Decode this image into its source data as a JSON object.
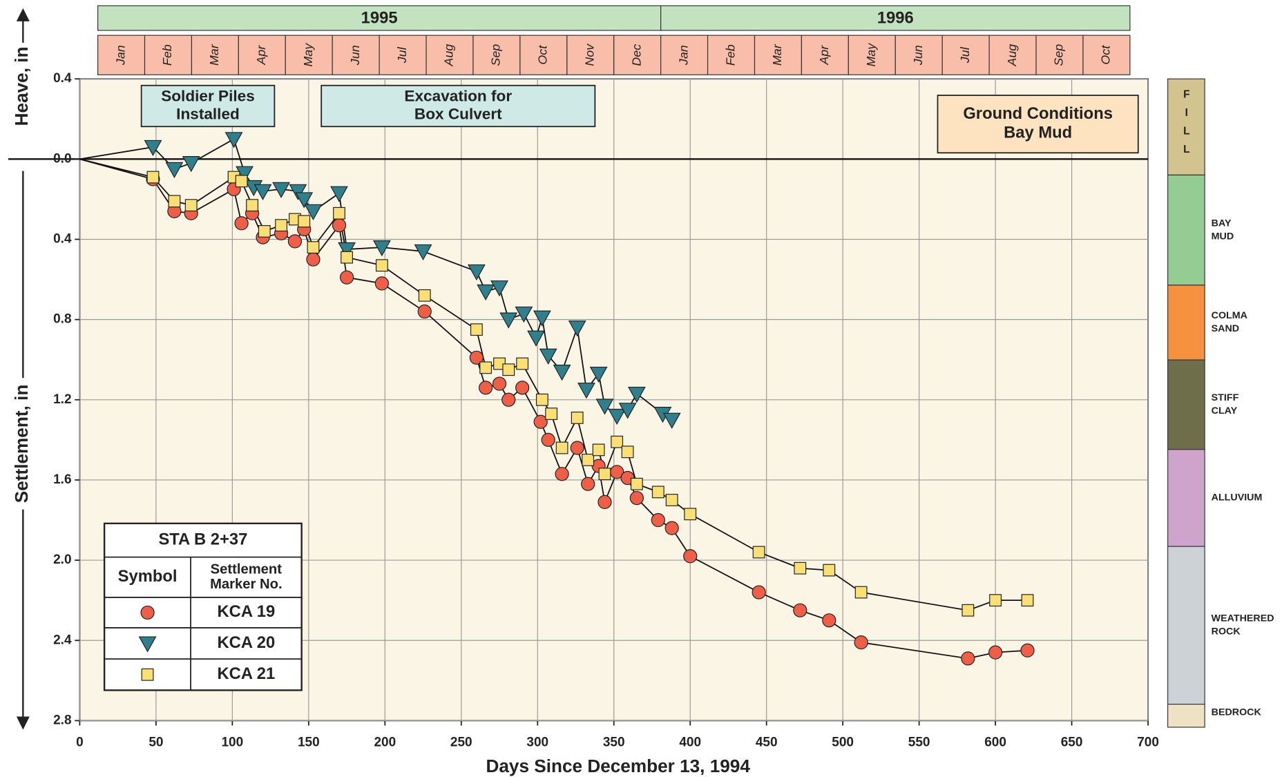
{
  "chart_data": {
    "type": "line",
    "timeline": [
      {
        "year": "1995",
        "months": [
          "Jan",
          "Feb",
          "Mar",
          "Apr",
          "May",
          "Jun",
          "Jul",
          "Aug",
          "Sep",
          "Oct",
          "Nov",
          "Dec"
        ]
      },
      {
        "year": "1996",
        "months": [
          "Jan",
          "Feb",
          "Mar",
          "Apr",
          "May",
          "Jun",
          "Jul",
          "Aug",
          "Sep",
          "Oct"
        ]
      }
    ],
    "annotations": [
      {
        "lines": [
          "Soldier Piles",
          "Installed"
        ]
      },
      {
        "lines": [
          "Excavation for",
          "Box Culvert"
        ]
      },
      {
        "lines": [
          "Ground Conditions",
          "Bay Mud"
        ]
      }
    ],
    "x_label": "Days Since December 13, 1994",
    "y_label_up": "Heave, in",
    "y_label_down": "Settlement, in",
    "xlim": [
      0,
      700
    ],
    "xticks": [
      0,
      50,
      100,
      150,
      200,
      250,
      300,
      350,
      400,
      450,
      500,
      550,
      600,
      650,
      700
    ],
    "ylim": [
      -0.4,
      2.8
    ],
    "yticks": [
      {
        "value": -0.4,
        "label": "0.4"
      },
      {
        "value": 0,
        "label": "0.0"
      },
      0.4,
      0.8,
      1.2,
      1.6,
      {
        "value": 2,
        "label": "2.0"
      },
      2.4,
      2.8
    ],
    "y_inverted": true,
    "grid": true,
    "legend": {
      "title": "STA B 2+37",
      "col1": "Symbol",
      "col2": [
        "Settlement",
        "Marker No."
      ],
      "position": "lower left"
    },
    "series": [
      {
        "name": "KCA 19",
        "marker": "circle",
        "color": "#ef5f48",
        "x": [
          0,
          48,
          62,
          73,
          101,
          106,
          113,
          120,
          132,
          141,
          147,
          153,
          170,
          175,
          198,
          226,
          260,
          266,
          275,
          281,
          290,
          302,
          307,
          316,
          326,
          333,
          340,
          344,
          352,
          359,
          365,
          379,
          388,
          400,
          445,
          472,
          491,
          512,
          582,
          600,
          621
        ],
        "values": [
          0,
          0.1,
          0.26,
          0.27,
          0.15,
          0.32,
          0.27,
          0.39,
          0.37,
          0.41,
          0.35,
          0.5,
          0.33,
          0.59,
          0.62,
          0.76,
          0.99,
          1.14,
          1.12,
          1.2,
          1.14,
          1.31,
          1.4,
          1.57,
          1.44,
          1.62,
          1.53,
          1.71,
          1.56,
          1.59,
          1.69,
          1.8,
          1.84,
          1.98,
          2.16,
          2.25,
          2.3,
          2.41,
          2.49,
          2.46,
          2.45
        ]
      },
      {
        "name": "KCA 20",
        "marker": "triangle",
        "color": "#2f7f8c",
        "x": [
          0,
          48,
          62,
          73,
          101,
          108,
          114,
          120,
          132,
          143,
          147,
          153,
          170,
          175,
          198,
          225,
          260,
          266,
          275,
          281,
          291,
          299,
          303,
          307,
          316,
          326,
          332,
          340,
          344,
          352,
          359,
          365,
          382,
          388
        ],
        "values": [
          0,
          -0.06,
          0.05,
          0.02,
          -0.1,
          0.07,
          0.14,
          0.16,
          0.15,
          0.16,
          0.2,
          0.26,
          0.17,
          0.45,
          0.44,
          0.46,
          0.56,
          0.66,
          0.64,
          0.8,
          0.77,
          0.89,
          0.79,
          0.98,
          1.06,
          0.84,
          1.15,
          1.07,
          1.23,
          1.28,
          1.25,
          1.17,
          1.27,
          1.3
        ]
      },
      {
        "name": "KCA 21",
        "marker": "square",
        "color": "#f9df74",
        "x": [
          0,
          48,
          62,
          73,
          101,
          106,
          113,
          121,
          132,
          141,
          147,
          153,
          170,
          175,
          198,
          226,
          260,
          266,
          275,
          281,
          290,
          303,
          309,
          316,
          326,
          333,
          340,
          344,
          352,
          359,
          365,
          379,
          388,
          400,
          445,
          472,
          491,
          512,
          582,
          600,
          621
        ],
        "values": [
          0,
          0.09,
          0.21,
          0.23,
          0.09,
          0.11,
          0.23,
          0.36,
          0.33,
          0.3,
          0.31,
          0.44,
          0.27,
          0.49,
          0.53,
          0.68,
          0.85,
          1.04,
          1.02,
          1.05,
          1.02,
          1.2,
          1.27,
          1.44,
          1.29,
          1.5,
          1.45,
          1.57,
          1.41,
          1.46,
          1.62,
          1.66,
          1.7,
          1.77,
          1.96,
          2.04,
          2.05,
          2.16,
          2.25,
          2.2,
          2.2
        ]
      }
    ],
    "soil_column": [
      {
        "lines": [
          "FILL"
        ],
        "color": "#d3c48f",
        "vertical": true
      },
      {
        "lines": [
          "BAY",
          "MUD"
        ],
        "color": "#94cc94"
      },
      {
        "lines": [
          "COLMA",
          "SAND"
        ],
        "color": "#f6923f"
      },
      {
        "lines": [
          "STIFF",
          "CLAY"
        ],
        "color": "#6e6f4a"
      },
      {
        "lines": [
          "ALLUVIUM"
        ],
        "color": "#cfa4cc"
      },
      {
        "lines": [
          "WEATHERED",
          "ROCK"
        ],
        "color": "#cdd2d6"
      },
      {
        "lines": [
          "BEDROCK"
        ],
        "color": "#efe1c4"
      }
    ]
  }
}
